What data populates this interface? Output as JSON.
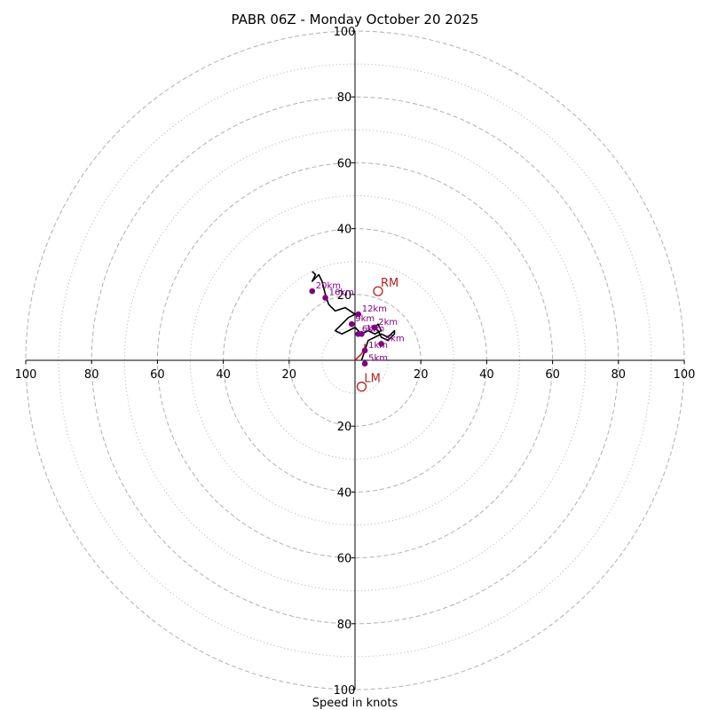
{
  "chart_data": {
    "type": "hodograph",
    "title": "PABR 06Z - Monday October 20 2025",
    "xlabel": "Speed in knots",
    "range": [
      -100,
      100
    ],
    "ring_values_major": [
      20,
      40,
      60,
      80,
      100
    ],
    "ring_values_minor": [
      10,
      30,
      50,
      70,
      90
    ],
    "tick_labels": [
      "100",
      "80",
      "60",
      "40",
      "20",
      "20",
      "40",
      "60",
      "80",
      "100"
    ],
    "tick_values": [
      -100,
      -80,
      -60,
      -40,
      -20,
      20,
      40,
      60,
      80,
      100
    ],
    "colors": {
      "trace": "#000000",
      "low_trace": "#cc2222",
      "heights": "#800080",
      "motion": "#b22222",
      "ring": "#b0b0b0"
    },
    "trace": [
      [
        2,
        0
      ],
      [
        3,
        3
      ],
      [
        4,
        6
      ],
      [
        6,
        7
      ],
      [
        8,
        8
      ],
      [
        10,
        7
      ],
      [
        12,
        9
      ],
      [
        12,
        8
      ],
      [
        11,
        7
      ],
      [
        10,
        6
      ],
      [
        8,
        7
      ],
      [
        7,
        9
      ],
      [
        6,
        10
      ],
      [
        7,
        11
      ],
      [
        8,
        9
      ],
      [
        6,
        8
      ],
      [
        4,
        9
      ],
      [
        2,
        8
      ],
      [
        1,
        9
      ],
      [
        0,
        10
      ],
      [
        -2,
        9
      ],
      [
        -4,
        8
      ],
      [
        -6,
        9
      ],
      [
        -4,
        11
      ],
      [
        -2,
        13
      ],
      [
        0,
        14
      ],
      [
        -3,
        16
      ],
      [
        -6,
        15
      ],
      [
        -8,
        17
      ],
      [
        -9,
        20
      ],
      [
        -10,
        24
      ],
      [
        -11,
        26
      ],
      [
        -13,
        24
      ],
      [
        -12,
        26
      ],
      [
        -13,
        27
      ]
    ],
    "low_trace": [
      [
        0,
        0
      ],
      [
        1,
        1
      ],
      [
        2,
        2
      ],
      [
        3,
        4
      ],
      [
        3,
        5
      ]
    ],
    "height_points": [
      {
        "label": "1km",
        "u": 3,
        "v": 3
      },
      {
        "label": "2km",
        "u": 6,
        "v": 10
      },
      {
        "label": "3km",
        "u": 2,
        "v": 8
      },
      {
        "label": "4km",
        "u": 8,
        "v": 5
      },
      {
        "label": "5km",
        "u": 3,
        "v": -1
      },
      {
        "label": "6km",
        "u": 1,
        "v": 8
      },
      {
        "label": "9km",
        "u": -1,
        "v": 11
      },
      {
        "label": "12km",
        "u": 1,
        "v": 14
      },
      {
        "label": "16km",
        "u": -9,
        "v": 19
      },
      {
        "label": "20km",
        "u": -13,
        "v": 21
      }
    ],
    "height_label_text": [
      "1km",
      "2km",
      "3km",
      "4km",
      "5km",
      "6km",
      "9km",
      "12km",
      "16km",
      "20km"
    ],
    "storm_motion": [
      {
        "label": "RM",
        "u": 7,
        "v": 21
      },
      {
        "label": "LM",
        "u": 2,
        "v": -8
      }
    ]
  }
}
